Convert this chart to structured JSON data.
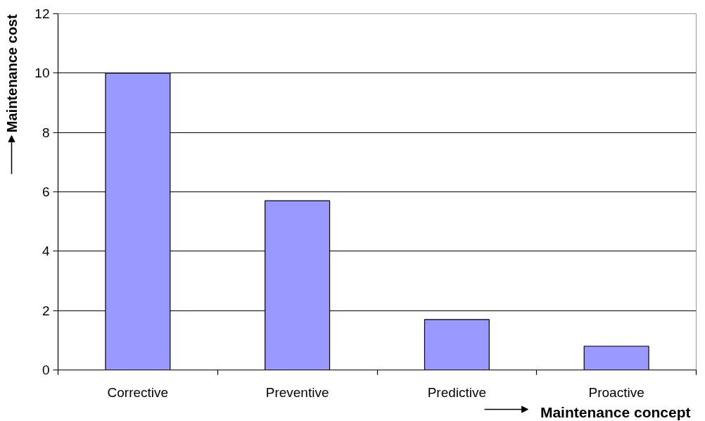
{
  "chart_data": {
    "type": "bar",
    "categories": [
      "Corrective",
      "Preventive",
      "Predictive",
      "Proactive"
    ],
    "values": [
      10,
      5.7,
      1.7,
      0.8
    ],
    "color": "#9999ff",
    "ylim": [
      0,
      12
    ],
    "yticks": [
      0,
      2,
      4,
      6,
      8,
      10,
      12
    ],
    "xlabel": "Maintenance concept",
    "ylabel": "Maintenance cost",
    "grid": "y"
  }
}
